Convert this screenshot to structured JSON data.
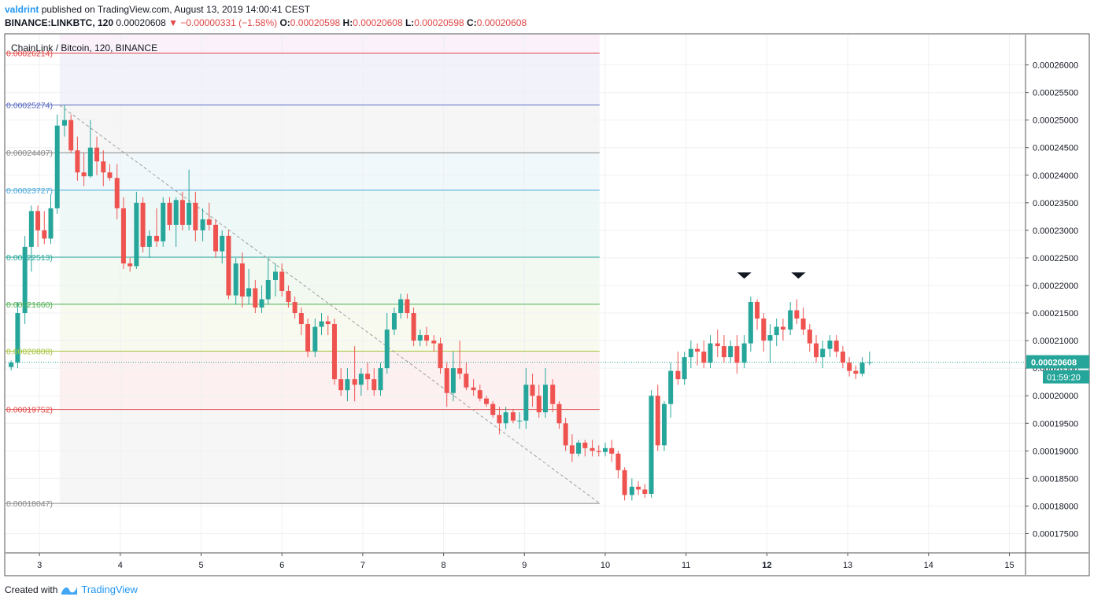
{
  "header": {
    "author": "valdrint",
    "published_text": "published on TradingView.com, August 13, 2019 14:00:41 CEST",
    "symbol": "BINANCE:LINKBTC, 120",
    "last": "0.00020608",
    "change": "−0.00000331 (−1.58%)",
    "o_label": "O:",
    "o": "0.00020598",
    "h_label": "H:",
    "h": "0.00020608",
    "l_label": "L:",
    "l": "0.00020598",
    "c_label": "C:",
    "c": "0.00020608"
  },
  "chart_title": "ChainLink / Bitcoin, 120, BINANCE",
  "footer": {
    "created_with": "Created with",
    "brand": "TradingView"
  },
  "colors": {
    "up": "#26a69a",
    "down": "#ef5350",
    "accent": "#2196f3"
  },
  "price_tag": {
    "value": "0.00020608",
    "countdown": "01:59:20"
  },
  "chart_data": {
    "type": "candlestick",
    "title": "ChainLink / Bitcoin, 120, BINANCE",
    "x_ticks": [
      "3",
      "4",
      "5",
      "6",
      "7",
      "8",
      "9",
      "10",
      "11",
      "12",
      "13",
      "14",
      "15"
    ],
    "x_tick_values": [
      3,
      4,
      5,
      6,
      7,
      8,
      9,
      10,
      11,
      12,
      13,
      14,
      15
    ],
    "x_range": [
      2.58,
      15.2
    ],
    "y_ticks": [
      "0.00017500",
      "0.00018000",
      "0.00018500",
      "0.00019000",
      "0.00019500",
      "0.00020000",
      "0.00020500",
      "0.00021000",
      "0.00021500",
      "0.00022000",
      "0.00022500",
      "0.00023000",
      "0.00023500",
      "0.00024000",
      "0.00024500",
      "0.00025000",
      "0.00025500",
      "0.00026000"
    ],
    "y_range": [
      0.0001715,
      0.0002655
    ],
    "last_price": 0.00020608,
    "fib_levels": [
      {
        "label": "0.00026214)",
        "value": 0.00026214,
        "color": "#e04646"
      },
      {
        "label": "0.00025274)",
        "value": 0.00025274,
        "color": "#5c6bc0"
      },
      {
        "label": "0.00024407)",
        "value": 0.00024407,
        "color": "#888888"
      },
      {
        "label": "0.00023727)",
        "value": 0.00023727,
        "color": "#4aa8d8"
      },
      {
        "label": "0.00022513)",
        "value": 0.00022513,
        "color": "#26a69a"
      },
      {
        "label": "0.00021660)",
        "value": 0.0002166,
        "color": "#4caf50"
      },
      {
        "label": "0.00020808)",
        "value": 0.00020808,
        "color": "#a5c43a"
      },
      {
        "label": "0.00019752)",
        "value": 0.00019752,
        "color": "#e04646"
      },
      {
        "label": "0.00018047)",
        "value": 0.00018047,
        "color": "#888888"
      }
    ],
    "fib_range_x": [
      3.25,
      9.93
    ],
    "trendline": [
      [
        3.25,
        0.0002527
      ],
      [
        9.93,
        0.0001805
      ]
    ],
    "markers": [
      [
        11.72,
        0.0002218
      ],
      [
        12.39,
        0.0002218
      ]
    ],
    "candles": [
      [
        2.65,
        0.0002052,
        0.0002064,
        0.0002046,
        0.000206
      ],
      [
        2.73,
        0.000206,
        0.000217,
        0.000205,
        0.000215
      ],
      [
        2.82,
        0.000215,
        0.000229,
        0.000213,
        0.000227
      ],
      [
        2.9,
        0.000227,
        0.0002345,
        0.0002225,
        0.0002335
      ],
      [
        2.98,
        0.0002335,
        0.0002345,
        0.000227,
        0.00023
      ],
      [
        3.06,
        0.00023,
        0.0002335,
        0.0002275,
        0.0002285
      ],
      [
        3.14,
        0.0002285,
        0.0002365,
        0.0002275,
        0.000234
      ],
      [
        3.22,
        0.000234,
        0.000251,
        0.000233,
        0.000249
      ],
      [
        3.31,
        0.000249,
        0.0002527,
        0.000247,
        0.00025
      ],
      [
        3.39,
        0.00025,
        0.000251,
        0.000244,
        0.0002445
      ],
      [
        3.47,
        0.0002445,
        0.000247,
        0.000239,
        0.0002405
      ],
      [
        3.55,
        0.0002405,
        0.000244,
        0.000238,
        0.0002398
      ],
      [
        3.63,
        0.0002398,
        0.00025,
        0.0002395,
        0.000245
      ],
      [
        3.71,
        0.000245,
        0.000247,
        0.00024,
        0.0002425
      ],
      [
        3.79,
        0.0002425,
        0.0002445,
        0.000238,
        0.0002405
      ],
      [
        3.87,
        0.0002405,
        0.000242,
        0.000239,
        0.0002395
      ],
      [
        3.96,
        0.0002395,
        0.000242,
        0.000232,
        0.000234
      ],
      [
        4.04,
        0.000234,
        0.000236,
        0.000223,
        0.000224
      ],
      [
        4.12,
        0.000224,
        0.000225,
        0.0002225,
        0.0002235
      ],
      [
        4.2,
        0.0002235,
        0.000237,
        0.000223,
        0.000235
      ],
      [
        4.28,
        0.000235,
        0.000236,
        0.000226,
        0.000227
      ],
      [
        4.36,
        0.000227,
        0.00023,
        0.000225,
        0.000229
      ],
      [
        4.45,
        0.000229,
        0.000234,
        0.000227,
        0.000228
      ],
      [
        4.53,
        0.000228,
        0.000236,
        0.000227,
        0.000235
      ],
      [
        4.61,
        0.000235,
        0.000236,
        0.00023,
        0.000231
      ],
      [
        4.69,
        0.000231,
        0.000236,
        0.000227,
        0.0002355
      ],
      [
        4.77,
        0.0002355,
        0.000237,
        0.00023,
        0.000231
      ],
      [
        4.85,
        0.000231,
        0.000241,
        0.00023,
        0.000235
      ],
      [
        4.93,
        0.000235,
        0.000237,
        0.000228,
        0.00023
      ],
      [
        5.02,
        0.00023,
        0.000234,
        0.000228,
        0.000232
      ],
      [
        5.1,
        0.000232,
        0.000235,
        0.00023,
        0.000231
      ],
      [
        5.18,
        0.000231,
        0.000232,
        0.000225,
        0.0002262
      ],
      [
        5.26,
        0.0002262,
        0.00023,
        0.000224,
        0.000229
      ],
      [
        5.34,
        0.000229,
        0.00023,
        0.0002175,
        0.0002182
      ],
      [
        5.43,
        0.0002182,
        0.000225,
        0.0002165,
        0.000224
      ],
      [
        5.51,
        0.000224,
        0.000226,
        0.000216,
        0.000218
      ],
      [
        5.59,
        0.000218,
        0.000223,
        0.0002165,
        0.0002195
      ],
      [
        5.67,
        0.0002195,
        0.000221,
        0.000215,
        0.000216
      ],
      [
        5.75,
        0.000216,
        0.00022,
        0.000215,
        0.0002175
      ],
      [
        5.83,
        0.0002175,
        0.000225,
        0.0002165,
        0.000221
      ],
      [
        5.92,
        0.000221,
        0.000224,
        0.000218,
        0.0002225
      ],
      [
        6.0,
        0.0002225,
        0.000224,
        0.000218,
        0.000219
      ],
      [
        6.08,
        0.000219,
        0.00022,
        0.000216,
        0.000217
      ],
      [
        6.16,
        0.000217,
        0.000218,
        0.000214,
        0.000215
      ],
      [
        6.24,
        0.000215,
        0.000216,
        0.000211,
        0.000213
      ],
      [
        6.32,
        0.000213,
        0.000214,
        0.000207,
        0.000208
      ],
      [
        6.41,
        0.000208,
        0.000214,
        0.000207,
        0.0002125
      ],
      [
        6.49,
        0.0002125,
        0.000215,
        0.000211,
        0.0002135
      ],
      [
        6.57,
        0.0002135,
        0.0002145,
        0.000211,
        0.000213
      ],
      [
        6.65,
        0.000213,
        0.000214,
        0.000202,
        0.000203
      ],
      [
        6.73,
        0.000203,
        0.000205,
        0.0002,
        0.000201
      ],
      [
        6.81,
        0.000201,
        0.000205,
        0.000199,
        0.000203
      ],
      [
        6.9,
        0.000203,
        0.000209,
        0.000199,
        0.000202
      ],
      [
        6.98,
        0.000202,
        0.000205,
        0.0002,
        0.000204
      ],
      [
        7.06,
        0.000204,
        0.000206,
        0.000201,
        0.000203
      ],
      [
        7.14,
        0.000203,
        0.000205,
        0.0002,
        0.000201
      ],
      [
        7.22,
        0.000201,
        0.000206,
        0.0002,
        0.000205
      ],
      [
        7.3,
        0.000205,
        0.000215,
        0.000204,
        0.000212
      ],
      [
        7.39,
        0.000212,
        0.000216,
        0.000211,
        0.000215
      ],
      [
        7.47,
        0.000215,
        0.0002185,
        0.000214,
        0.0002175
      ],
      [
        7.55,
        0.0002175,
        0.0002185,
        0.000214,
        0.000215
      ],
      [
        7.63,
        0.000215,
        0.000216,
        0.000209,
        0.00021
      ],
      [
        7.71,
        0.00021,
        0.000212,
        0.000209,
        0.000211
      ],
      [
        7.79,
        0.000211,
        0.0002125,
        0.000209,
        0.00021
      ],
      [
        7.88,
        0.00021,
        0.000211,
        0.000208,
        0.0002095
      ],
      [
        7.96,
        0.0002095,
        0.0002105,
        0.000204,
        0.000205
      ],
      [
        8.04,
        0.000205,
        0.000206,
        0.000198,
        0.0002005
      ],
      [
        8.12,
        0.0002005,
        0.000208,
        0.000199,
        0.000205
      ],
      [
        8.2,
        0.000205,
        0.00021,
        0.000203,
        0.000204
      ],
      [
        8.28,
        0.000204,
        0.000206,
        0.000201,
        0.0002015
      ],
      [
        8.37,
        0.0002015,
        0.000203,
        0.0002,
        0.000201
      ],
      [
        8.45,
        0.000201,
        0.000202,
        0.000199,
        0.0001995
      ],
      [
        8.53,
        0.0001995,
        0.0002,
        0.000198,
        0.0001985
      ],
      [
        8.61,
        0.0001985,
        0.000199,
        0.000196,
        0.0001965
      ],
      [
        8.69,
        0.0001965,
        0.000198,
        0.000193,
        0.000195
      ],
      [
        8.77,
        0.000195,
        0.000198,
        0.000194,
        0.000197
      ],
      [
        8.86,
        0.000197,
        0.0001975,
        0.000195,
        0.0001955
      ],
      [
        8.94,
        0.0001955,
        0.000197,
        0.000194,
        0.0001955
      ],
      [
        9.02,
        0.0001955,
        0.000205,
        0.000194,
        0.000202
      ],
      [
        9.1,
        0.000202,
        0.000204,
        0.000198,
        0.0002
      ],
      [
        9.18,
        0.0002,
        0.000202,
        0.000196,
        0.000197
      ],
      [
        9.26,
        0.000197,
        0.000205,
        0.000196,
        0.000202
      ],
      [
        9.35,
        0.000202,
        0.000203,
        0.000197,
        0.0001985
      ],
      [
        9.43,
        0.0001985,
        0.000199,
        0.000194,
        0.000195
      ],
      [
        9.51,
        0.000195,
        0.000196,
        0.00019,
        0.000191
      ],
      [
        9.59,
        0.000191,
        0.000193,
        0.000188,
        0.0001895
      ],
      [
        9.67,
        0.0001895,
        0.000192,
        0.000189,
        0.0001915
      ],
      [
        9.75,
        0.0001915,
        0.000192,
        0.000189,
        0.0001905
      ],
      [
        9.84,
        0.0001905,
        0.000192,
        0.000189,
        0.00019
      ],
      [
        9.92,
        0.00019,
        0.000191,
        0.000189,
        0.0001898
      ],
      [
        10.0,
        0.0001898,
        0.0001915,
        0.000189,
        0.0001905
      ],
      [
        10.08,
        0.0001905,
        0.000192,
        0.000188,
        0.0001895
      ],
      [
        10.16,
        0.0001895,
        0.00019,
        0.000185,
        0.0001865
      ],
      [
        10.24,
        0.0001865,
        0.000187,
        0.000181,
        0.000182
      ],
      [
        10.33,
        0.000182,
        0.000185,
        0.000181,
        0.0001835
      ],
      [
        10.41,
        0.0001835,
        0.0001845,
        0.000182,
        0.000183
      ],
      [
        10.49,
        0.000183,
        0.000184,
        0.0001815,
        0.0001822
      ],
      [
        10.57,
        0.0001822,
        0.000201,
        0.0001815,
        0.0002
      ],
      [
        10.65,
        0.0002,
        0.000202,
        0.00019,
        0.000191
      ],
      [
        10.73,
        0.000191,
        0.000199,
        0.00019,
        0.0001985
      ],
      [
        10.81,
        0.0001985,
        0.000206,
        0.000196,
        0.0002045
      ],
      [
        10.9,
        0.0002045,
        0.000208,
        0.000202,
        0.000203
      ],
      [
        10.98,
        0.000203,
        0.000208,
        0.000202,
        0.000207
      ],
      [
        11.06,
        0.000207,
        0.00021,
        0.000205,
        0.0002085
      ],
      [
        11.14,
        0.0002085,
        0.0002095,
        0.0002055,
        0.000208
      ],
      [
        11.22,
        0.000208,
        0.00021,
        0.000205,
        0.000206
      ],
      [
        11.3,
        0.000206,
        0.000211,
        0.000205,
        0.0002095
      ],
      [
        11.39,
        0.0002095,
        0.000212,
        0.000207,
        0.000209
      ],
      [
        11.47,
        0.000209,
        0.000211,
        0.000206,
        0.000207
      ],
      [
        11.55,
        0.000207,
        0.00021,
        0.000206,
        0.000209
      ],
      [
        11.63,
        0.000209,
        0.000211,
        0.000204,
        0.000206
      ],
      [
        11.72,
        0.000206,
        0.000211,
        0.000205,
        0.0002095
      ],
      [
        11.8,
        0.0002095,
        0.000218,
        0.000208,
        0.000217
      ],
      [
        11.88,
        0.000217,
        0.0002175,
        0.000212,
        0.000214
      ],
      [
        11.96,
        0.000214,
        0.000215,
        0.000208,
        0.00021
      ],
      [
        12.04,
        0.00021,
        0.000213,
        0.000206,
        0.000211
      ],
      [
        12.12,
        0.000211,
        0.000214,
        0.000209,
        0.0002125
      ],
      [
        12.2,
        0.0002125,
        0.000214,
        0.00021,
        0.000212
      ],
      [
        12.29,
        0.000212,
        0.000217,
        0.000211,
        0.0002155
      ],
      [
        12.37,
        0.0002155,
        0.0002175,
        0.000213,
        0.000214
      ],
      [
        12.45,
        0.000214,
        0.000216,
        0.000211,
        0.000212
      ],
      [
        12.53,
        0.000212,
        0.000213,
        0.000208,
        0.0002095
      ],
      [
        12.61,
        0.0002095,
        0.000211,
        0.000206,
        0.000207
      ],
      [
        12.69,
        0.000207,
        0.00021,
        0.000205,
        0.0002085
      ],
      [
        12.78,
        0.0002085,
        0.000211,
        0.000207,
        0.00021
      ],
      [
        12.86,
        0.00021,
        0.000211,
        0.000207,
        0.000208
      ],
      [
        12.94,
        0.000208,
        0.000209,
        0.000205,
        0.000206
      ],
      [
        13.02,
        0.000206,
        0.000207,
        0.0002035,
        0.0002045
      ],
      [
        13.1,
        0.0002045,
        0.0002055,
        0.000203,
        0.000204
      ],
      [
        13.18,
        0.000204,
        0.000207,
        0.0002035,
        0.000206
      ],
      [
        13.27,
        0.000206,
        0.000208,
        0.0002055,
        0.0002061
      ]
    ]
  }
}
